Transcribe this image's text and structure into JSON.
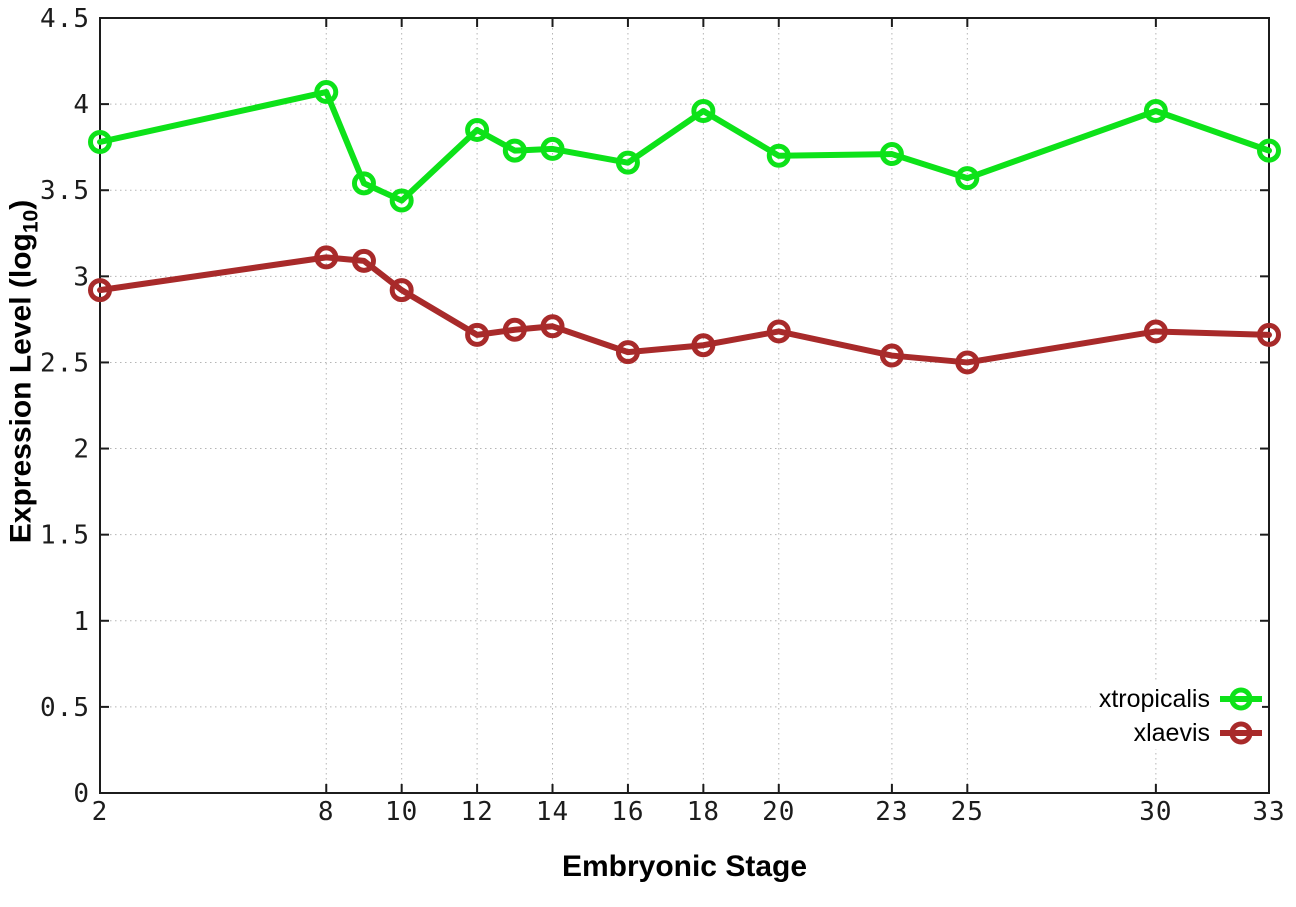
{
  "chart_data": {
    "type": "line",
    "title": "",
    "xlabel": "Embryonic Stage",
    "ylabel_parts": {
      "main": "Expression Level (log",
      "sub": "10",
      "close": ")"
    },
    "x": [
      2,
      8,
      9,
      10,
      12,
      13,
      14,
      16,
      18,
      20,
      23,
      25,
      30,
      33
    ],
    "series": [
      {
        "name": "xtropicalis",
        "color": "#0de219",
        "values": [
          3.78,
          4.07,
          3.54,
          3.44,
          3.85,
          3.73,
          3.74,
          3.66,
          3.96,
          3.7,
          3.71,
          3.57,
          3.96,
          3.73
        ]
      },
      {
        "name": "xlaevis",
        "color": "#a82a2a",
        "values": [
          2.92,
          3.11,
          3.09,
          2.92,
          2.66,
          2.69,
          2.71,
          2.56,
          2.6,
          2.68,
          2.54,
          2.5,
          2.68,
          2.66
        ]
      }
    ],
    "xlim": [
      2,
      33
    ],
    "ylim": [
      0,
      4.5
    ],
    "xticks": [
      2,
      8,
      10,
      12,
      14,
      16,
      18,
      20,
      23,
      25,
      30,
      33
    ],
    "xtick_labels": [
      "2",
      "8",
      "10",
      "12",
      "14",
      "16",
      "18",
      "20",
      "23",
      "25",
      "30",
      "33"
    ],
    "yticks": [
      0,
      0.5,
      1,
      1.5,
      2,
      2.5,
      3,
      3.5,
      4,
      4.5
    ],
    "ytick_labels": [
      "0",
      "0.5",
      "1",
      "1.5",
      "2",
      "2.5",
      "3",
      "3.5",
      "4",
      "4.5"
    ],
    "grid": true,
    "legend_position": "bottom-right-inside",
    "colors": {
      "axis": "#1c1c1c",
      "grid": "#b5b5b5",
      "background": "#ffffff"
    }
  }
}
